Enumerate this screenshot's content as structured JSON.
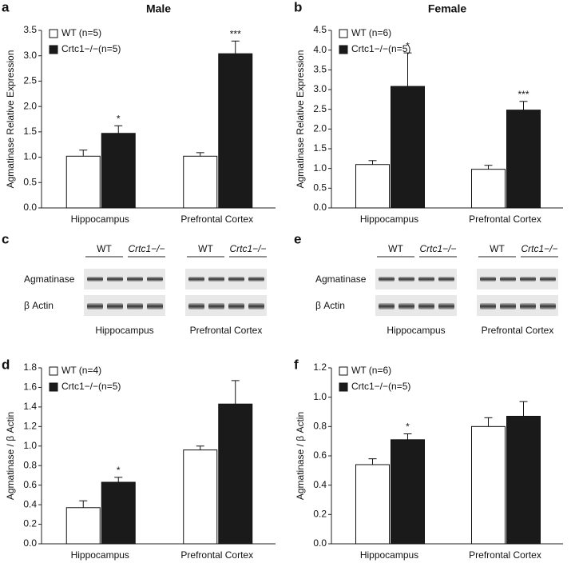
{
  "chart_data": [
    {
      "type": "bar",
      "panel": "a",
      "title": "Male",
      "ylabel": "Agmatinase Relative Expression",
      "categories": [
        "Hippocampus",
        "Prefrontal Cortex"
      ],
      "series": [
        {
          "name": "WT (n=5)",
          "color": "#ffffff",
          "values": [
            1.02,
            1.02
          ],
          "errors": [
            0.12,
            0.07
          ],
          "annotations": [
            null,
            null
          ]
        },
        {
          "name": "Crtc1−/−(n=5)",
          "color": "#1a1a1a",
          "values": [
            1.47,
            3.04
          ],
          "errors": [
            0.15,
            0.25
          ],
          "annotations": [
            "*",
            "***"
          ]
        }
      ],
      "ylim": [
        0,
        3.5
      ],
      "yticks": [
        {
          "value": 0,
          "label": "0.0"
        },
        0.5,
        {
          "value": 1,
          "label": "1.0"
        },
        1.5,
        {
          "value": 2,
          "label": "2.0"
        },
        2.5,
        {
          "value": 3,
          "label": "3.0"
        },
        3.5
      ]
    },
    {
      "type": "bar",
      "panel": "b",
      "title": "Female",
      "ylabel": "Agmatinase Relative Expression",
      "categories": [
        "Hippocampus",
        "Prefrontal Cortex"
      ],
      "series": [
        {
          "name": "WT (n=6)",
          "color": "#ffffff",
          "values": [
            1.1,
            0.98
          ],
          "errors": [
            0.1,
            0.1
          ],
          "annotations": [
            null,
            null
          ]
        },
        {
          "name": "Crtc1−/−(n=5)",
          "color": "#1a1a1a",
          "values": [
            3.08,
            2.48
          ],
          "errors": [
            0.85,
            0.22
          ],
          "annotations": [
            "*",
            "***"
          ]
        }
      ],
      "ylim": [
        0,
        4.5
      ],
      "yticks": [
        {
          "value": 0,
          "label": "0.0"
        },
        0.5,
        {
          "value": 1,
          "label": "1.0"
        },
        1.5,
        {
          "value": 2,
          "label": "2.0"
        },
        2.5,
        {
          "value": 3,
          "label": "3.0"
        },
        3.5,
        {
          "value": 4,
          "label": "4.0"
        },
        4.5
      ]
    },
    {
      "type": "bar",
      "panel": "d",
      "ylabel": "Agmatinase / β Actin",
      "categories": [
        "Hippocampus",
        "Prefrontal Cortex"
      ],
      "series": [
        {
          "name": "WT (n=4)",
          "color": "#ffffff",
          "values": [
            0.37,
            0.96
          ],
          "errors": [
            0.07,
            0.04
          ],
          "annotations": [
            null,
            null
          ]
        },
        {
          "name": "Crtc1−/−(n=5)",
          "color": "#1a1a1a",
          "values": [
            0.63,
            1.43
          ],
          "errors": [
            0.05,
            0.24
          ],
          "annotations": [
            "*",
            null
          ]
        }
      ],
      "ylim": [
        0,
        1.8
      ],
      "yticks": [
        {
          "value": 0,
          "label": "0.0"
        },
        0.2,
        0.4,
        0.6,
        0.8,
        {
          "value": 1,
          "label": "1.0"
        },
        1.2,
        1.4,
        1.6,
        1.8
      ]
    },
    {
      "type": "bar",
      "panel": "f",
      "ylabel": "Agmatinase / β Actin",
      "categories": [
        "Hippocampus",
        "Prefrontal Cortex"
      ],
      "series": [
        {
          "name": "WT (n=6)",
          "color": "#ffffff",
          "values": [
            0.54,
            0.8
          ],
          "errors": [
            0.04,
            0.06
          ],
          "annotations": [
            null,
            null
          ]
        },
        {
          "name": "Crtc1−/−(n=5)",
          "color": "#1a1a1a",
          "values": [
            0.71,
            0.87
          ],
          "errors": [
            0.04,
            0.1
          ],
          "annotations": [
            "*",
            null
          ]
        }
      ],
      "ylim": [
        0,
        1.2
      ],
      "yticks": [
        {
          "value": 0,
          "label": "0.0"
        },
        0.2,
        0.4,
        0.6,
        0.8,
        {
          "value": 1,
          "label": "1.0"
        },
        1.2
      ]
    }
  ],
  "blots": [
    {
      "panel": "c",
      "groups": [
        "WT",
        "Crtc1−/−"
      ],
      "rows": [
        "Agmatinase",
        "β Actin"
      ],
      "regions": [
        "Hippocampus",
        "Prefrontal Cortex"
      ]
    },
    {
      "panel": "e",
      "groups": [
        "WT",
        "Crtc1−/−"
      ],
      "rows": [
        "Agmatinase",
        "β Actin"
      ],
      "regions": [
        "Hippocampus",
        "Prefrontal Cortex"
      ]
    }
  ]
}
